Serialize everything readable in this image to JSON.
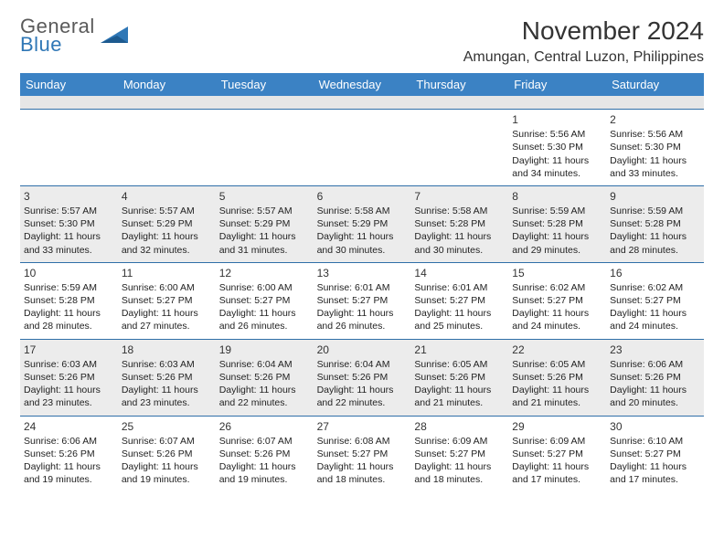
{
  "logo": {
    "line1": "General",
    "line2": "Blue"
  },
  "colors": {
    "header_bg": "#3b82c4",
    "header_text": "#ffffff",
    "rule": "#2f6fa8",
    "shaded": "#ececec",
    "logo_gray": "#5a5a5a",
    "logo_blue": "#2f77b6"
  },
  "title": "November 2024",
  "location": "Amungan, Central Luzon, Philippines",
  "day_headers": [
    "Sunday",
    "Monday",
    "Tuesday",
    "Wednesday",
    "Thursday",
    "Friday",
    "Saturday"
  ],
  "weeks": [
    [
      {
        "blank": true
      },
      {
        "blank": true
      },
      {
        "blank": true
      },
      {
        "blank": true
      },
      {
        "blank": true
      },
      {
        "num": "1",
        "sunrise": "Sunrise: 5:56 AM",
        "sunset": "Sunset: 5:30 PM",
        "daylight1": "Daylight: 11 hours",
        "daylight2": "and 34 minutes."
      },
      {
        "num": "2",
        "sunrise": "Sunrise: 5:56 AM",
        "sunset": "Sunset: 5:30 PM",
        "daylight1": "Daylight: 11 hours",
        "daylight2": "and 33 minutes."
      }
    ],
    [
      {
        "num": "3",
        "sunrise": "Sunrise: 5:57 AM",
        "sunset": "Sunset: 5:30 PM",
        "daylight1": "Daylight: 11 hours",
        "daylight2": "and 33 minutes."
      },
      {
        "num": "4",
        "sunrise": "Sunrise: 5:57 AM",
        "sunset": "Sunset: 5:29 PM",
        "daylight1": "Daylight: 11 hours",
        "daylight2": "and 32 minutes."
      },
      {
        "num": "5",
        "sunrise": "Sunrise: 5:57 AM",
        "sunset": "Sunset: 5:29 PM",
        "daylight1": "Daylight: 11 hours",
        "daylight2": "and 31 minutes."
      },
      {
        "num": "6",
        "sunrise": "Sunrise: 5:58 AM",
        "sunset": "Sunset: 5:29 PM",
        "daylight1": "Daylight: 11 hours",
        "daylight2": "and 30 minutes."
      },
      {
        "num": "7",
        "sunrise": "Sunrise: 5:58 AM",
        "sunset": "Sunset: 5:28 PM",
        "daylight1": "Daylight: 11 hours",
        "daylight2": "and 30 minutes."
      },
      {
        "num": "8",
        "sunrise": "Sunrise: 5:59 AM",
        "sunset": "Sunset: 5:28 PM",
        "daylight1": "Daylight: 11 hours",
        "daylight2": "and 29 minutes."
      },
      {
        "num": "9",
        "sunrise": "Sunrise: 5:59 AM",
        "sunset": "Sunset: 5:28 PM",
        "daylight1": "Daylight: 11 hours",
        "daylight2": "and 28 minutes."
      }
    ],
    [
      {
        "num": "10",
        "sunrise": "Sunrise: 5:59 AM",
        "sunset": "Sunset: 5:28 PM",
        "daylight1": "Daylight: 11 hours",
        "daylight2": "and 28 minutes."
      },
      {
        "num": "11",
        "sunrise": "Sunrise: 6:00 AM",
        "sunset": "Sunset: 5:27 PM",
        "daylight1": "Daylight: 11 hours",
        "daylight2": "and 27 minutes."
      },
      {
        "num": "12",
        "sunrise": "Sunrise: 6:00 AM",
        "sunset": "Sunset: 5:27 PM",
        "daylight1": "Daylight: 11 hours",
        "daylight2": "and 26 minutes."
      },
      {
        "num": "13",
        "sunrise": "Sunrise: 6:01 AM",
        "sunset": "Sunset: 5:27 PM",
        "daylight1": "Daylight: 11 hours",
        "daylight2": "and 26 minutes."
      },
      {
        "num": "14",
        "sunrise": "Sunrise: 6:01 AM",
        "sunset": "Sunset: 5:27 PM",
        "daylight1": "Daylight: 11 hours",
        "daylight2": "and 25 minutes."
      },
      {
        "num": "15",
        "sunrise": "Sunrise: 6:02 AM",
        "sunset": "Sunset: 5:27 PM",
        "daylight1": "Daylight: 11 hours",
        "daylight2": "and 24 minutes."
      },
      {
        "num": "16",
        "sunrise": "Sunrise: 6:02 AM",
        "sunset": "Sunset: 5:27 PM",
        "daylight1": "Daylight: 11 hours",
        "daylight2": "and 24 minutes."
      }
    ],
    [
      {
        "num": "17",
        "sunrise": "Sunrise: 6:03 AM",
        "sunset": "Sunset: 5:26 PM",
        "daylight1": "Daylight: 11 hours",
        "daylight2": "and 23 minutes."
      },
      {
        "num": "18",
        "sunrise": "Sunrise: 6:03 AM",
        "sunset": "Sunset: 5:26 PM",
        "daylight1": "Daylight: 11 hours",
        "daylight2": "and 23 minutes."
      },
      {
        "num": "19",
        "sunrise": "Sunrise: 6:04 AM",
        "sunset": "Sunset: 5:26 PM",
        "daylight1": "Daylight: 11 hours",
        "daylight2": "and 22 minutes."
      },
      {
        "num": "20",
        "sunrise": "Sunrise: 6:04 AM",
        "sunset": "Sunset: 5:26 PM",
        "daylight1": "Daylight: 11 hours",
        "daylight2": "and 22 minutes."
      },
      {
        "num": "21",
        "sunrise": "Sunrise: 6:05 AM",
        "sunset": "Sunset: 5:26 PM",
        "daylight1": "Daylight: 11 hours",
        "daylight2": "and 21 minutes."
      },
      {
        "num": "22",
        "sunrise": "Sunrise: 6:05 AM",
        "sunset": "Sunset: 5:26 PM",
        "daylight1": "Daylight: 11 hours",
        "daylight2": "and 21 minutes."
      },
      {
        "num": "23",
        "sunrise": "Sunrise: 6:06 AM",
        "sunset": "Sunset: 5:26 PM",
        "daylight1": "Daylight: 11 hours",
        "daylight2": "and 20 minutes."
      }
    ],
    [
      {
        "num": "24",
        "sunrise": "Sunrise: 6:06 AM",
        "sunset": "Sunset: 5:26 PM",
        "daylight1": "Daylight: 11 hours",
        "daylight2": "and 19 minutes."
      },
      {
        "num": "25",
        "sunrise": "Sunrise: 6:07 AM",
        "sunset": "Sunset: 5:26 PM",
        "daylight1": "Daylight: 11 hours",
        "daylight2": "and 19 minutes."
      },
      {
        "num": "26",
        "sunrise": "Sunrise: 6:07 AM",
        "sunset": "Sunset: 5:26 PM",
        "daylight1": "Daylight: 11 hours",
        "daylight2": "and 19 minutes."
      },
      {
        "num": "27",
        "sunrise": "Sunrise: 6:08 AM",
        "sunset": "Sunset: 5:27 PM",
        "daylight1": "Daylight: 11 hours",
        "daylight2": "and 18 minutes."
      },
      {
        "num": "28",
        "sunrise": "Sunrise: 6:09 AM",
        "sunset": "Sunset: 5:27 PM",
        "daylight1": "Daylight: 11 hours",
        "daylight2": "and 18 minutes."
      },
      {
        "num": "29",
        "sunrise": "Sunrise: 6:09 AM",
        "sunset": "Sunset: 5:27 PM",
        "daylight1": "Daylight: 11 hours",
        "daylight2": "and 17 minutes."
      },
      {
        "num": "30",
        "sunrise": "Sunrise: 6:10 AM",
        "sunset": "Sunset: 5:27 PM",
        "daylight1": "Daylight: 11 hours",
        "daylight2": "and 17 minutes."
      }
    ]
  ]
}
